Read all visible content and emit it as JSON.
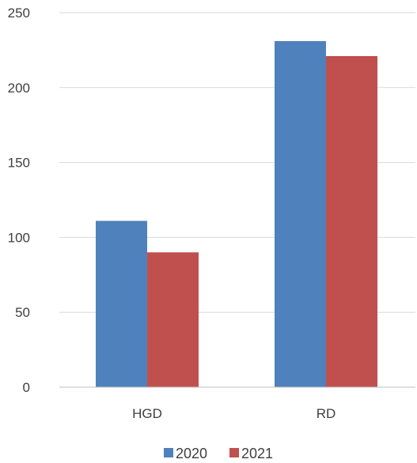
{
  "chart_data": {
    "type": "bar",
    "title": "",
    "xlabel": "",
    "ylabel": "",
    "categories": [
      "HGD",
      "RD"
    ],
    "series": [
      {
        "name": "2020",
        "color": "#4f81bd",
        "values": [
          111,
          231
        ]
      },
      {
        "name": "2021",
        "color": "#c0504d",
        "values": [
          90,
          221
        ]
      }
    ],
    "ylim": [
      0,
      250
    ],
    "yticks": [
      0,
      50,
      100,
      150,
      200,
      250
    ],
    "grid": true,
    "legend": "bottom-center"
  }
}
